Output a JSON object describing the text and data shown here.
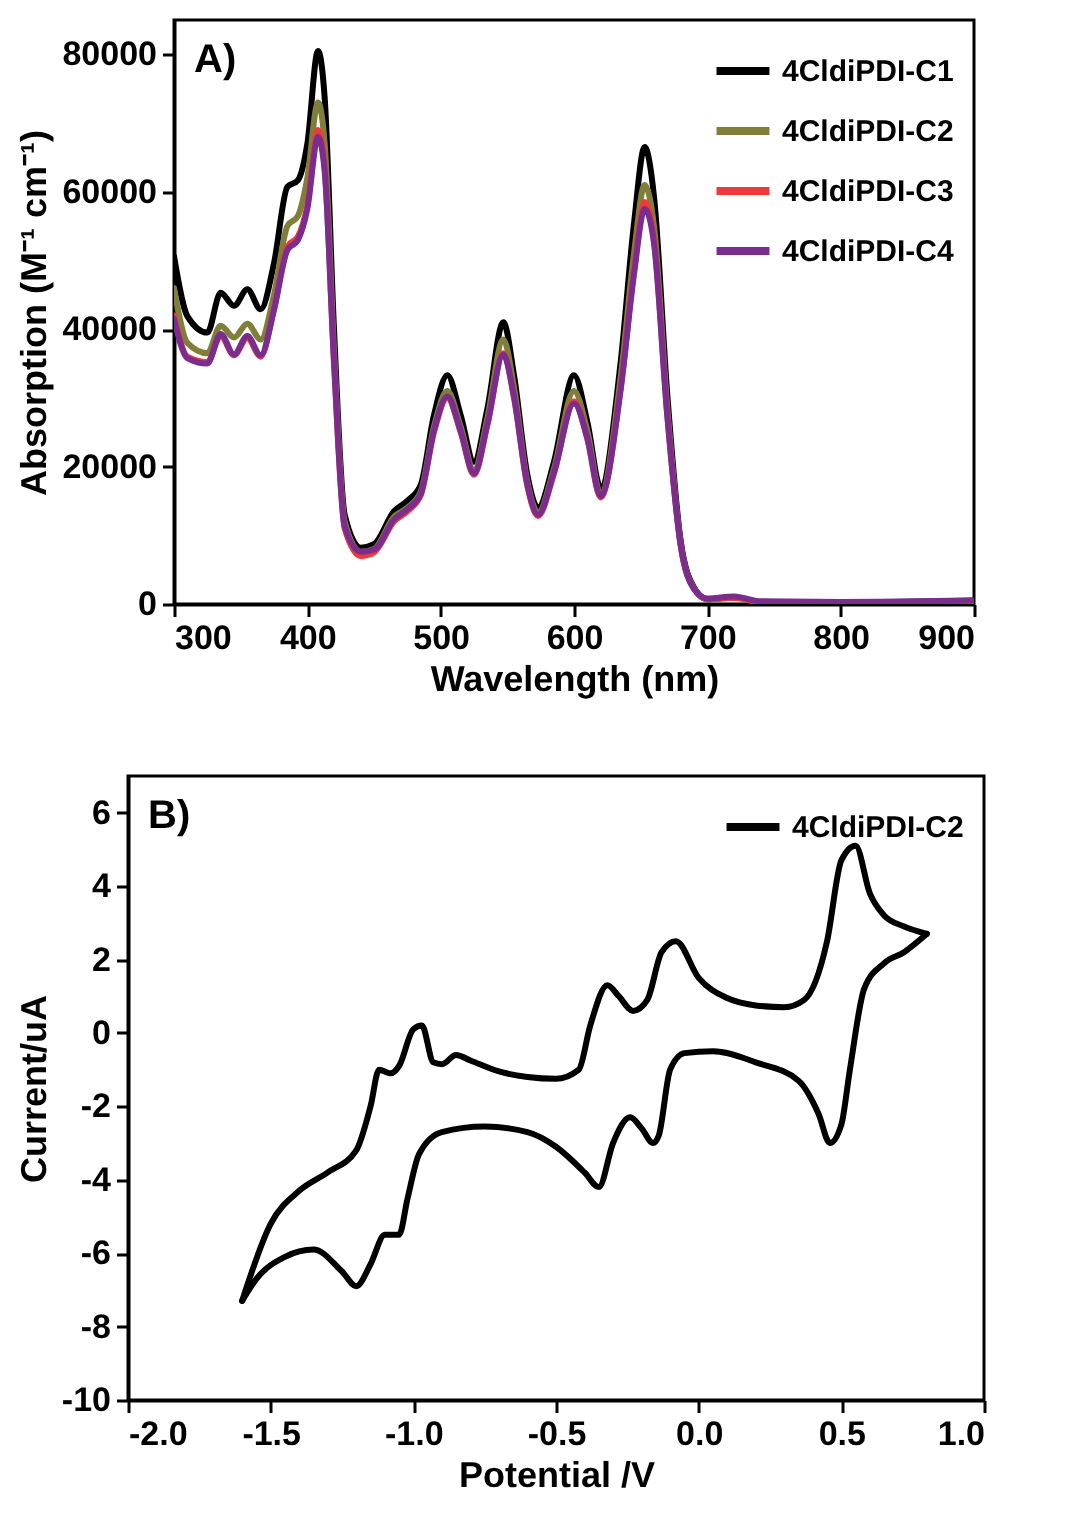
{
  "chart_data": [
    {
      "type": "line",
      "xlabel": "Wavelength (nm)",
      "ylabel": "Absorption (M⁻¹ cm⁻¹)",
      "annotations": [
        "A)"
      ],
      "legend": "top right",
      "xlim": [
        300,
        900
      ],
      "xticks": [
        300,
        400,
        500,
        600,
        700,
        800,
        900
      ],
      "ylim": [
        0,
        85000
      ],
      "yticks": [
        0,
        20000,
        40000,
        60000,
        80000
      ],
      "x": [
        300,
        310,
        325,
        335,
        345,
        355,
        365,
        375,
        385,
        393,
        400,
        408,
        413,
        420,
        428,
        440,
        450,
        465,
        475,
        485,
        495,
        505,
        515,
        525,
        535,
        547,
        555,
        565,
        573,
        585,
        600,
        610,
        620,
        635,
        645,
        653,
        660,
        670,
        680,
        690,
        700,
        720,
        740,
        800,
        900
      ],
      "series": [
        {
          "name": "4CldiPDI-C1",
          "color": "#000000",
          "values": [
            50600,
            41900,
            39500,
            45300,
            43400,
            45800,
            42900,
            49600,
            60700,
            61700,
            67000,
            80500,
            73700,
            40000,
            13000,
            8200,
            8700,
            13500,
            15000,
            17300,
            27500,
            33300,
            27500,
            20700,
            28400,
            41000,
            33300,
            18800,
            14000,
            20700,
            33300,
            26500,
            16900,
            35200,
            55400,
            66500,
            59300,
            30400,
            9200,
            2400,
            700,
            1000,
            300,
            200,
            500
          ]
        },
        {
          "name": "4CldiPDI-C2",
          "color": "#7f7f3a",
          "values": [
            46000,
            38000,
            36500,
            40500,
            38800,
            40800,
            38500,
            45000,
            55000,
            56500,
            62000,
            73000,
            67000,
            37000,
            12000,
            7600,
            8000,
            12700,
            14000,
            16300,
            25800,
            31000,
            25800,
            19500,
            27000,
            38500,
            31500,
            17800,
            13300,
            19700,
            31000,
            25200,
            16000,
            33000,
            51000,
            61000,
            55000,
            28500,
            8700,
            2300,
            700,
            900,
            300,
            200,
            400
          ]
        },
        {
          "name": "4CldiPDI-C3",
          "color": "#f03a3a",
          "values": [
            42000,
            36000,
            35200,
            39000,
            36200,
            38700,
            36000,
            43000,
            52000,
            53500,
            58000,
            69000,
            63500,
            35000,
            11000,
            7000,
            7500,
            12000,
            13500,
            15800,
            25000,
            30000,
            25000,
            18800,
            26000,
            36500,
            30000,
            17200,
            12800,
            19000,
            29500,
            24000,
            15500,
            31500,
            48500,
            58500,
            53000,
            27500,
            8500,
            2200,
            700,
            900,
            300,
            200,
            400
          ]
        },
        {
          "name": "4CldiPDI-C4",
          "color": "#7b2d8e",
          "values": [
            41500,
            35800,
            35000,
            39300,
            36300,
            39000,
            36200,
            42800,
            51500,
            53000,
            57500,
            68000,
            63000,
            35500,
            11300,
            7600,
            7900,
            12300,
            13800,
            16000,
            25300,
            30200,
            25200,
            19000,
            26200,
            36300,
            30200,
            17400,
            13000,
            19200,
            29200,
            24200,
            15700,
            31200,
            48000,
            57500,
            52500,
            27300,
            8600,
            2200,
            800,
            1100,
            400,
            300,
            500
          ]
        }
      ]
    },
    {
      "type": "line",
      "xlabel": "Potential /V",
      "ylabel": "Current/uA",
      "annotations": [
        "B)"
      ],
      "legend": "top right",
      "xlim": [
        -2,
        1
      ],
      "xticks": [
        {
          "value": -2,
          "label": "-2.0"
        },
        {
          "value": -1.5,
          "label": "-1.5"
        },
        {
          "value": -1,
          "label": "-1.0"
        },
        {
          "value": -0.5,
          "label": "-0.5"
        },
        {
          "value": 0,
          "label": "0.0"
        },
        {
          "value": 0.5,
          "label": "0.5"
        },
        {
          "value": 1,
          "label": "1.0"
        }
      ],
      "ylim": [
        -10,
        7
      ],
      "yticks": [
        -10,
        -8,
        -6,
        -4,
        -2,
        0,
        2,
        4,
        6
      ],
      "series": [
        {
          "name": "4CldiPDI-C2",
          "color": "#000000",
          "x": [
            -1.6,
            -1.5,
            -1.4,
            -1.3,
            -1.2,
            -1.15,
            -1.12,
            -1.08,
            -1.05,
            -1.0,
            -0.97,
            -0.93,
            -0.9,
            -0.85,
            -0.8,
            -0.7,
            -0.6,
            -0.5,
            -0.42,
            -0.38,
            -0.32,
            -0.28,
            -0.23,
            -0.18,
            -0.13,
            -0.08,
            0,
            0.1,
            0.2,
            0.3,
            0.37,
            0.45,
            0.5,
            0.55,
            0.6,
            0.65,
            0.72,
            0.8
          ],
          "values": [
            -7.3,
            -5.2,
            -4.3,
            -3.8,
            -3.2,
            -2.0,
            -1.0,
            -1.1,
            -0.9,
            0.1,
            0.2,
            -0.8,
            -0.85,
            -0.6,
            -0.75,
            -1.05,
            -1.2,
            -1.25,
            -1.0,
            0.2,
            1.3,
            1.0,
            0.6,
            0.9,
            2.2,
            2.5,
            1.5,
            0.95,
            0.75,
            0.7,
            0.9,
            2.5,
            4.7,
            5.1,
            3.8,
            3.2,
            2.9,
            2.7
          ]
        },
        {
          "color": "#000000",
          "x": [
            -1.6,
            -1.55,
            -1.45,
            -1.35,
            -1.25,
            -1.2,
            -1.15,
            -1.1,
            -1.05,
            -1.02,
            -0.98,
            -0.9,
            -0.75,
            -0.6,
            -0.5,
            -0.4,
            -0.35,
            -0.3,
            -0.24,
            -0.2,
            -0.16,
            -0.14,
            -0.1,
            -0.05,
            0.05,
            0.2,
            0.35,
            0.42,
            0.46,
            0.5,
            0.53,
            0.58,
            0.65,
            0.72,
            0.8
          ],
          "values": [
            -7.3,
            -6.7,
            -6.1,
            -5.9,
            -6.5,
            -6.9,
            -6.3,
            -5.5,
            -5.5,
            -4.5,
            -3.3,
            -2.7,
            -2.55,
            -2.7,
            -3.1,
            -3.8,
            -4.2,
            -3.0,
            -2.3,
            -2.6,
            -3.0,
            -2.8,
            -1.0,
            -0.55,
            -0.5,
            -0.8,
            -1.3,
            -2.2,
            -3.0,
            -2.5,
            -1.0,
            1.2,
            1.9,
            2.2,
            2.7
          ]
        }
      ]
    }
  ]
}
